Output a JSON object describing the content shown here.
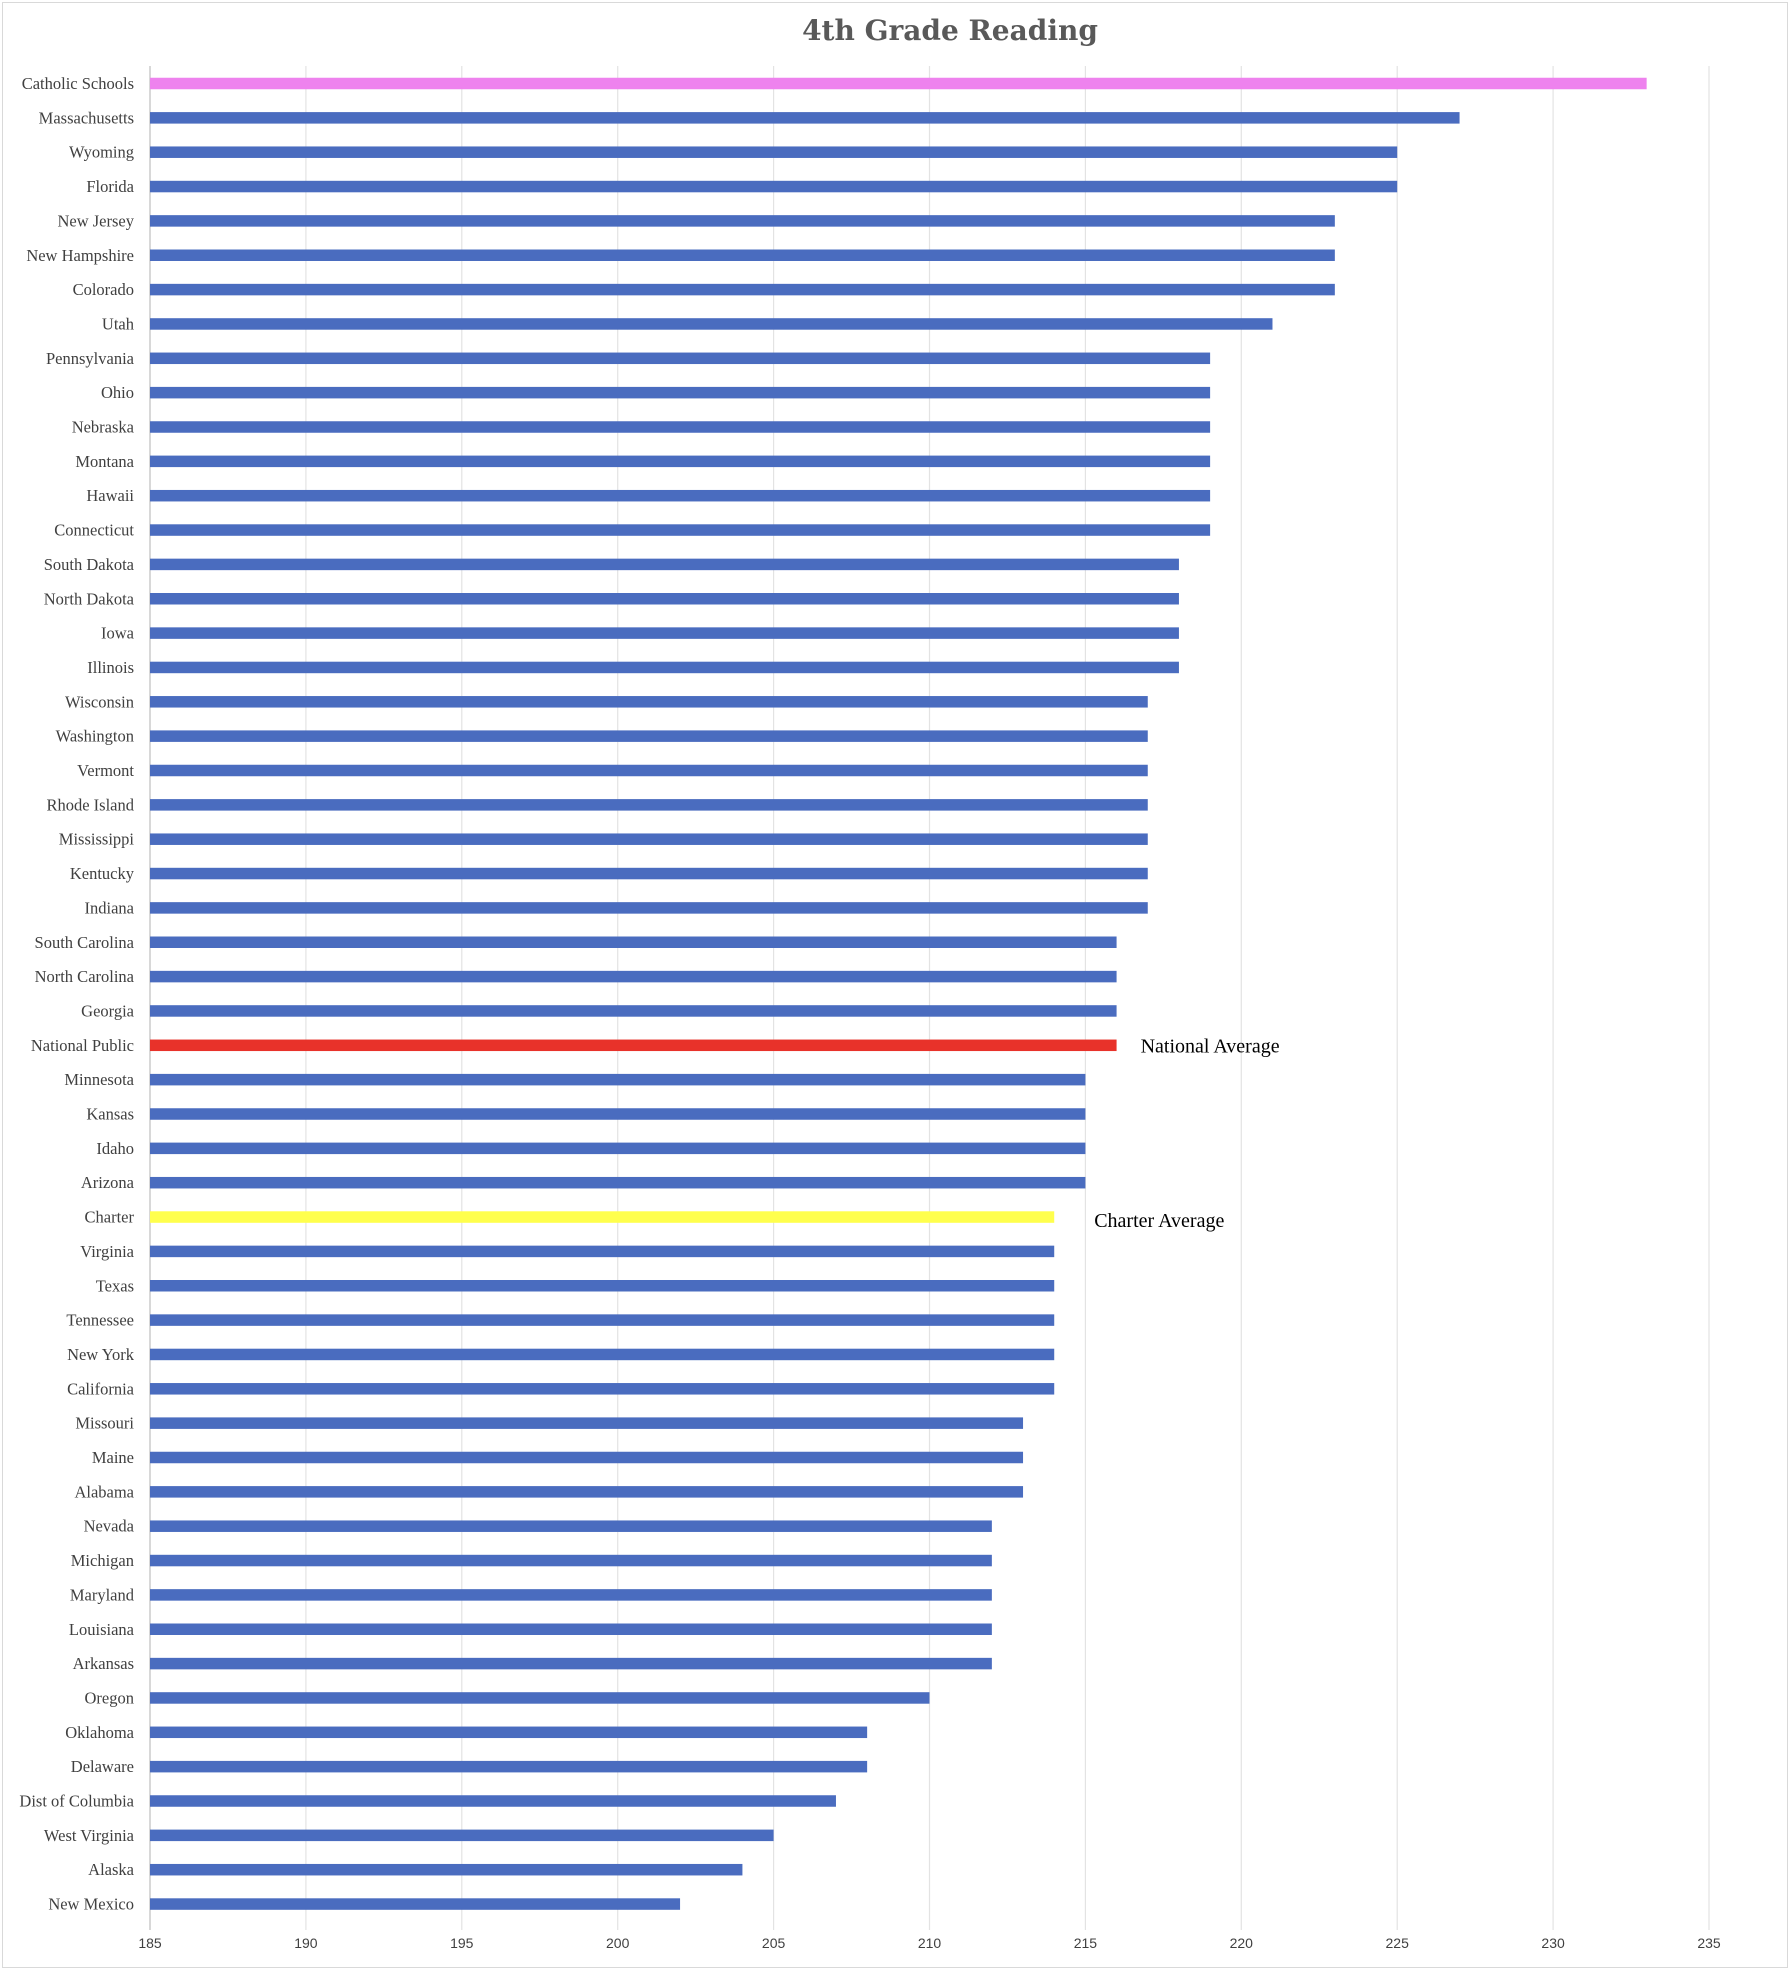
{
  "chart_data": {
    "type": "bar",
    "orientation": "horizontal",
    "title": "4th Grade Reading",
    "xlabel": "",
    "ylabel": "",
    "xlim": [
      185,
      235
    ],
    "x_ticks": [
      185,
      190,
      195,
      200,
      205,
      210,
      215,
      220,
      225,
      230,
      235
    ],
    "grid": true,
    "legend": "none",
    "colors": {
      "default": "#4a6cbf",
      "Catholic Schools": "#ee82ee",
      "National Public": "#e8322a",
      "Charter": "#ffff4d"
    },
    "categories": [
      "Catholic Schools",
      "Massachusetts",
      "Wyoming",
      "Florida",
      "New Jersey",
      "New Hampshire",
      "Colorado",
      "Utah",
      "Pennsylvania",
      "Ohio",
      "Nebraska",
      "Montana",
      "Hawaii",
      "Connecticut",
      "South Dakota",
      "North Dakota",
      "Iowa",
      "Illinois",
      "Wisconsin",
      "Washington",
      "Vermont",
      "Rhode Island",
      "Mississippi",
      "Kentucky",
      "Indiana",
      "South Carolina",
      "North Carolina",
      "Georgia",
      "National Public",
      "Minnesota",
      "Kansas",
      "Idaho",
      "Arizona",
      "Charter",
      "Virginia",
      "Texas",
      "Tennessee",
      "New York",
      "California",
      "Missouri",
      "Maine",
      "Alabama",
      "Nevada",
      "Michigan",
      "Maryland",
      "Louisiana",
      "Arkansas",
      "Oregon",
      "Oklahoma",
      "Delaware",
      "Dist of Columbia",
      "West Virginia",
      "Alaska",
      "New Mexico"
    ],
    "values": [
      233,
      227,
      225,
      225,
      223,
      223,
      223,
      221,
      219,
      219,
      219,
      219,
      219,
      219,
      218,
      218,
      218,
      218,
      217,
      217,
      217,
      217,
      217,
      217,
      217,
      216,
      216,
      216,
      216,
      215,
      215,
      215,
      215,
      214,
      214,
      214,
      214,
      214,
      214,
      213,
      213,
      213,
      212,
      212,
      212,
      212,
      212,
      210,
      208,
      208,
      207,
      205,
      204,
      202
    ],
    "annotations": [
      {
        "category": "National Public",
        "text": "National Average"
      },
      {
        "category": "Charter",
        "text": "Charter Average"
      }
    ]
  }
}
